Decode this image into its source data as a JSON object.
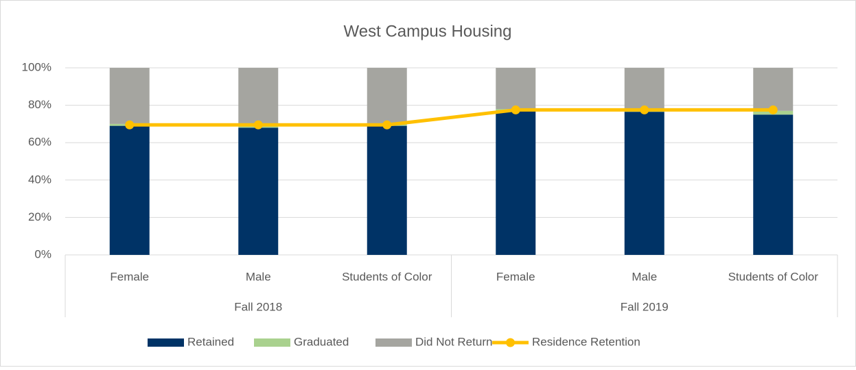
{
  "chart_data": {
    "type": "stacked-bar-line",
    "title": "West Campus Housing",
    "groups": [
      {
        "label": "Fall 2018",
        "categories": [
          "Female",
          "Male",
          "Students of Color"
        ]
      },
      {
        "label": "Fall 2019",
        "categories": [
          "Female",
          "Male",
          "Students of Color"
        ]
      }
    ],
    "series": [
      {
        "name": "Retained",
        "kind": "bar",
        "color": "#003366",
        "values": [
          69,
          68,
          69,
          77,
          76.5,
          75
        ]
      },
      {
        "name": "Graduated",
        "kind": "bar",
        "color": "#a9d18e",
        "values": [
          1,
          1.5,
          1,
          1,
          1,
          2
        ]
      },
      {
        "name": "Did Not Return",
        "kind": "bar",
        "color": "#a5a5a0",
        "values": [
          30,
          30.5,
          30,
          22,
          22.5,
          23
        ]
      },
      {
        "name": "Residence Retention",
        "kind": "line",
        "color": "#ffc000",
        "values": [
          69.5,
          69.5,
          69.5,
          77.5,
          77.5,
          77.5
        ]
      }
    ],
    "ylim": [
      0,
      100
    ],
    "yticks": [
      {
        "value": 0,
        "label": "0%"
      },
      {
        "value": 20,
        "label": "20%"
      },
      {
        "value": 40,
        "label": "40%"
      },
      {
        "value": 60,
        "label": "60%"
      },
      {
        "value": 80,
        "label": "80%"
      },
      {
        "value": 100,
        "label": "100%"
      }
    ],
    "grid": true,
    "legend": "bottom"
  }
}
